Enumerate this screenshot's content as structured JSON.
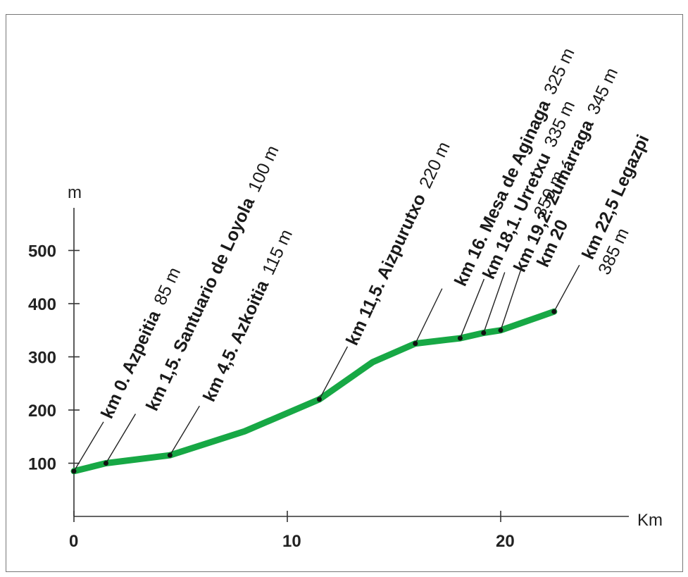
{
  "chart_data": {
    "type": "line",
    "title": "",
    "xlabel": "Km",
    "ylabel": "m",
    "xlim": [
      0,
      26
    ],
    "ylim": [
      0,
      550
    ],
    "x_ticks": [
      "0",
      "10",
      "20"
    ],
    "x_tick_values": [
      0,
      10,
      20
    ],
    "y_ticks": [
      "100",
      "200",
      "300",
      "400",
      "500"
    ],
    "y_tick_values": [
      100,
      200,
      300,
      400,
      500
    ],
    "grid": false,
    "colors": {
      "line": "#17a845",
      "axis": "#333333",
      "marker": "#111111",
      "leader": "#222222"
    },
    "series": [
      {
        "values": [
          {
            "x": 0,
            "y": 85
          },
          {
            "x": 1.5,
            "y": 100
          },
          {
            "x": 4.5,
            "y": 115
          },
          {
            "x": 8,
            "y": 160
          },
          {
            "x": 11.5,
            "y": 220
          },
          {
            "x": 14,
            "y": 290
          },
          {
            "x": 16,
            "y": 325
          },
          {
            "x": 18.1,
            "y": 335
          },
          {
            "x": 19.2,
            "y": 345
          },
          {
            "x": 20,
            "y": 350
          },
          {
            "x": 22.5,
            "y": 385
          }
        ]
      }
    ],
    "annotations": [
      {
        "km": 0,
        "alt_m": 85,
        "label": "km 0. Azpeitia",
        "altitude": "85 m"
      },
      {
        "km": 1.5,
        "alt_m": 100,
        "label": "km 1,5. Santuario de Loyola",
        "altitude": "100 m"
      },
      {
        "km": 4.5,
        "alt_m": 115,
        "label": "km 4,5. Azkoitia",
        "altitude": "115 m"
      },
      {
        "km": 11.5,
        "alt_m": 220,
        "label": "km 11,5.  Aizpurutxo",
        "altitude": "220 m"
      },
      {
        "km": 16,
        "alt_m": 325,
        "label": "km 16. Mesa de Aginaga",
        "altitude": "325 m"
      },
      {
        "km": 18.1,
        "alt_m": 335,
        "label": "km 18,1. Urretxu",
        "altitude": "335 m"
      },
      {
        "km": 19.2,
        "alt_m": 345,
        "label": "km 19,2. Zumárraga",
        "altitude": "345 m"
      },
      {
        "km": 20,
        "alt_m": 350,
        "label": "km 20",
        "altitude": "350 m"
      },
      {
        "km": 22.5,
        "alt_m": 385,
        "label": "km 22,5 Legazpi",
        "altitude": "385 m"
      }
    ]
  }
}
